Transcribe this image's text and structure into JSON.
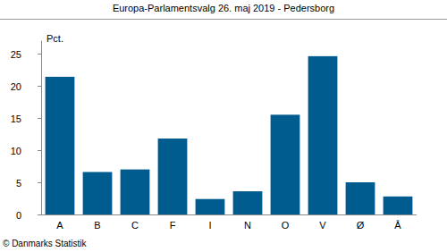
{
  "chart_data": {
    "type": "bar",
    "title": "Europa-Parlamentsvalg 26. maj 2019 - Pedersborg",
    "y_label": "Pct.",
    "source": "© Danmarks Statistik",
    "categories": [
      "A",
      "B",
      "C",
      "F",
      "I",
      "N",
      "O",
      "V",
      "Ø",
      "Å"
    ],
    "values": [
      21.4,
      6.6,
      7.0,
      11.8,
      2.4,
      3.6,
      15.5,
      24.6,
      5.0,
      2.8
    ],
    "color": "#005b8f",
    "ylim": [
      0,
      27
    ],
    "yticks": [
      0,
      5,
      10,
      15,
      20,
      25
    ],
    "grid": false
  }
}
